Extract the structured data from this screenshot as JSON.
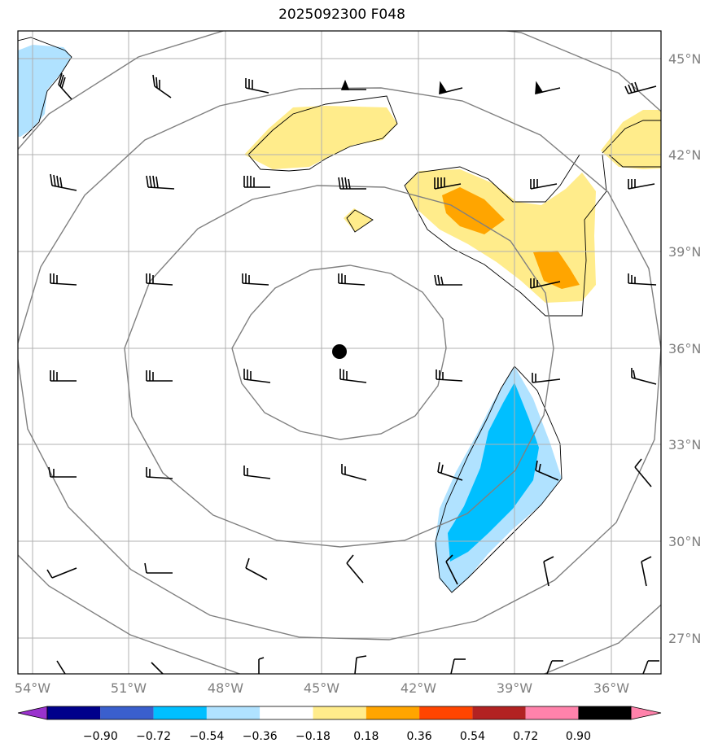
{
  "title": "2025092300 F048",
  "lon_labels": [
    "54°W",
    "51°W",
    "48°W",
    "45°W",
    "42°W",
    "39°W",
    "36°W"
  ],
  "lat_labels": [
    "45°N",
    "42°N",
    "39°N",
    "36°N",
    "33°N",
    "30°N",
    "27°N"
  ],
  "colorbar": {
    "tick_labels": [
      "−0.90",
      "−0.72",
      "−0.54",
      "−0.36",
      "−0.18",
      "0.18",
      "0.36",
      "0.54",
      "0.72",
      "0.90"
    ],
    "colors": [
      "#9a32cd",
      "#00008b",
      "#3a5fcd",
      "#00bfff",
      "#b0e2ff",
      "#ffffff",
      "#ffec8b",
      "#ffa500",
      "#ff4500",
      "#b22222",
      "#ff82ab"
    ]
  },
  "colors": {
    "grid": "#b0b0b0",
    "range_rings": "#808080",
    "contour": "#000000"
  },
  "center_marker": {
    "lon": -44.5,
    "lat": 35.9
  }
}
